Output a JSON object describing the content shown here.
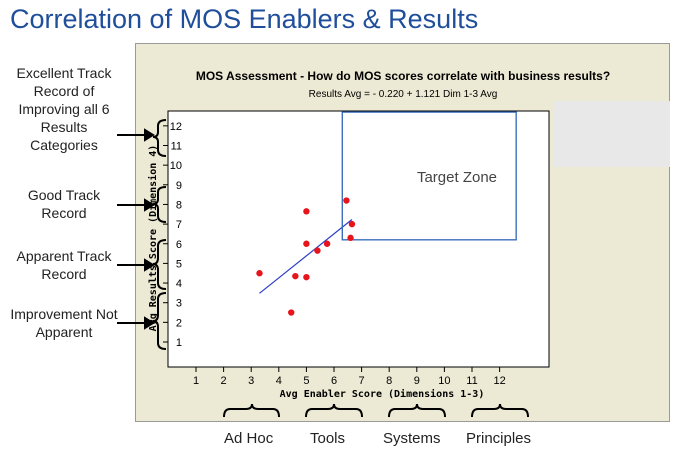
{
  "slide_title": "Correlation of MOS Enablers & Results",
  "side_labels": [
    "Excellent Track Record of Improving all 6 Results Categories",
    "Good Track Record",
    "Apparent Track Record",
    "Improvement Not Apparent"
  ],
  "bottom_labels": [
    "Ad Hoc",
    "Tools",
    "Systems",
    "Principles"
  ],
  "colors": {
    "title": "#1f4e9a",
    "points": "#e8141b",
    "fit_line": "#2a3fc7",
    "target_zone": "#2e64b8",
    "panel": "#ece9d4"
  },
  "chart_data": {
    "type": "scatter",
    "title": "MOS Assessment - How do MOS scores correlate with business results?",
    "subtitle": "Results Avg =  - 0.220 + 1.121 Dim 1-3 Avg",
    "xlabel": "Avg Enabler Score  (Dimensions 1-3)",
    "ylabel": "Avg Results Score (Dimension 4)",
    "xlim": [
      0,
      13
    ],
    "ylim": [
      0,
      13
    ],
    "xticks": [
      "1",
      "2",
      "3",
      "4",
      "5",
      "6",
      "7",
      "8",
      "9",
      "10",
      "11",
      "12"
    ],
    "yticks": [
      "1",
      "2",
      "3",
      "4",
      "5",
      "6",
      "7",
      "8",
      "9",
      "10",
      "11",
      "12"
    ],
    "points": [
      {
        "x": 3.3,
        "y": 4.5
      },
      {
        "x": 4.45,
        "y": 2.5
      },
      {
        "x": 4.6,
        "y": 4.35
      },
      {
        "x": 5.0,
        "y": 4.3
      },
      {
        "x": 5.0,
        "y": 6.0
      },
      {
        "x": 5.0,
        "y": 7.65
      },
      {
        "x": 5.4,
        "y": 5.65
      },
      {
        "x": 5.75,
        "y": 6.0
      },
      {
        "x": 6.45,
        "y": 8.2
      },
      {
        "x": 6.6,
        "y": 6.3
      },
      {
        "x": 6.65,
        "y": 7.0
      }
    ],
    "fit_line": {
      "intercept": -0.22,
      "slope": 1.121,
      "x_range": [
        3.3,
        6.65
      ]
    },
    "annotation": {
      "text": "Target Zone",
      "x_range": [
        6.3,
        12.6
      ],
      "y_range": [
        6.2,
        12.7
      ]
    },
    "grid": false
  }
}
